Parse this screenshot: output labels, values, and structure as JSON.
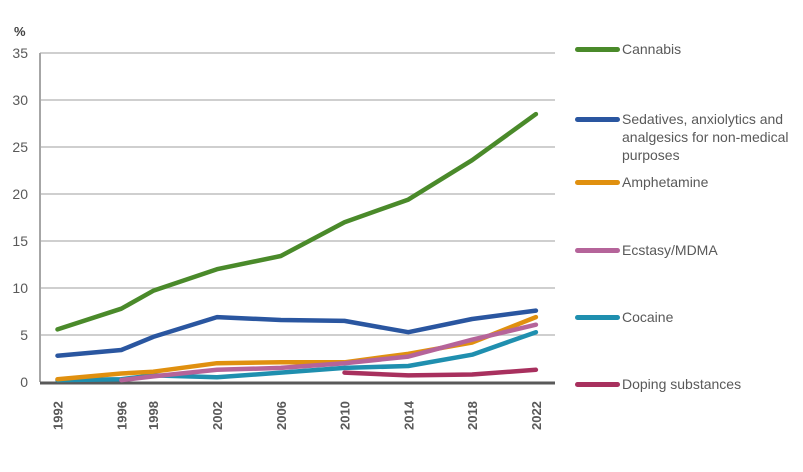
{
  "chart_data": {
    "type": "line",
    "title": "",
    "ylabel": "%",
    "xlabel": "",
    "ylim": [
      0,
      35
    ],
    "yticks": [
      0,
      5,
      10,
      15,
      20,
      25,
      30,
      35
    ],
    "x": [
      1992,
      1996,
      1998,
      2002,
      2006,
      2010,
      2014,
      2018,
      2022
    ],
    "xticks": [
      "1992",
      "1996",
      "1998",
      "2002",
      "2006",
      "2010",
      "2014",
      "2018",
      "2022"
    ],
    "grid": true,
    "legend_position": "right",
    "series": [
      {
        "name": "Cannabis",
        "color": "#4a8a2a",
        "x": [
          1992,
          1996,
          1998,
          2002,
          2006,
          2010,
          2014,
          2018,
          2022
        ],
        "values": [
          5.6,
          7.8,
          9.7,
          12.0,
          13.4,
          17.0,
          19.4,
          23.6,
          28.5
        ]
      },
      {
        "name": "Sedatives, anxiolytics and analgesics for non-medical purposes",
        "color": "#2a56a0",
        "x": [
          1992,
          1996,
          1998,
          2002,
          2006,
          2010,
          2014,
          2018,
          2022
        ],
        "values": [
          2.8,
          3.4,
          4.8,
          6.9,
          6.6,
          6.5,
          5.3,
          6.7,
          7.6
        ]
      },
      {
        "name": "Amphetamine",
        "color": "#e0900f",
        "x": [
          1992,
          1996,
          1998,
          2002,
          2006,
          2010,
          2014,
          2018,
          2022
        ],
        "values": [
          0.3,
          0.9,
          1.1,
          2.0,
          2.1,
          2.1,
          3.0,
          4.2,
          6.9
        ]
      },
      {
        "name": "Ecstasy/MDMA",
        "color": "#b5649a",
        "x": [
          1996,
          1998,
          2002,
          2006,
          2010,
          2014,
          2018,
          2022
        ],
        "values": [
          0.2,
          0.6,
          1.3,
          1.5,
          2.0,
          2.7,
          4.5,
          6.1
        ]
      },
      {
        "name": "Cocaine",
        "color": "#1f8faf",
        "x": [
          1992,
          1996,
          1998,
          2002,
          2006,
          2010,
          2014,
          2018,
          2022
        ],
        "values": [
          0.2,
          0.3,
          0.7,
          0.5,
          1.0,
          1.5,
          1.7,
          2.9,
          5.3
        ]
      },
      {
        "name": "Doping substances",
        "color": "#a8305e",
        "x": [
          2010,
          2014,
          2018,
          2022
        ],
        "values": [
          1.0,
          0.7,
          0.8,
          1.3
        ]
      }
    ]
  },
  "legend": {
    "items": [
      {
        "label": "Cannabis",
        "color": "#4a8a2a"
      },
      {
        "label": "Sedatives, anxiolytics and analgesics for non-medical purposes",
        "color": "#2a56a0"
      },
      {
        "label": "Amphetamine",
        "color": "#e0900f"
      },
      {
        "label": "Ecstasy/MDMA",
        "color": "#b5649a"
      },
      {
        "label": "Cocaine",
        "color": "#1f8faf"
      },
      {
        "label": "Doping substances",
        "color": "#a8305e"
      }
    ]
  }
}
